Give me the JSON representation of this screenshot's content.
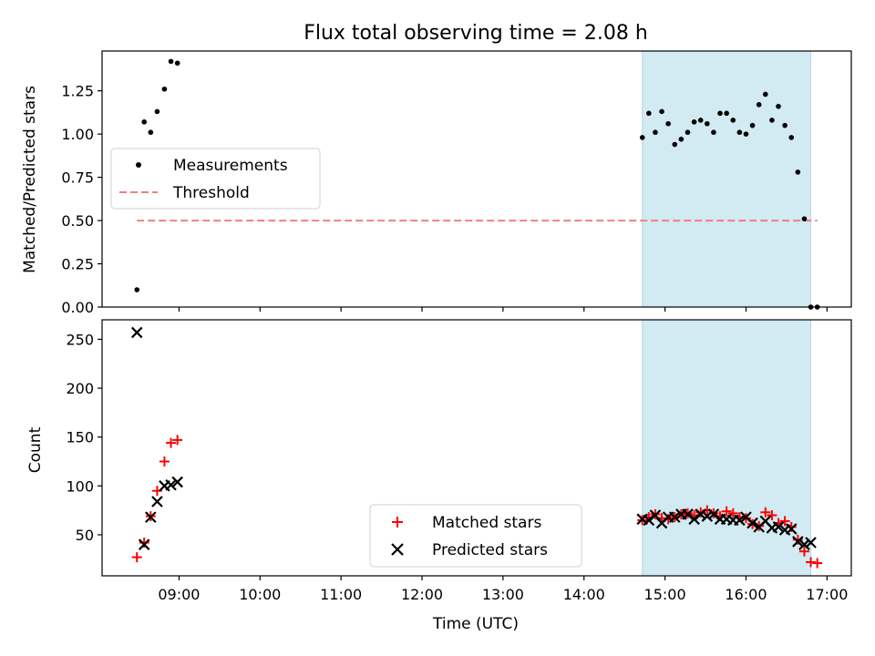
{
  "chart_data": {
    "type": "scatter",
    "title": "Flux total observing time = 2.08 h",
    "xlabel": "Time (UTC)",
    "x_tick_labels": [
      "09:00",
      "10:00",
      "11:00",
      "12:00",
      "13:00",
      "14:00",
      "15:00",
      "16:00",
      "17:00"
    ],
    "x_tick_hours": [
      9,
      10,
      11,
      12,
      13,
      14,
      15,
      16,
      17
    ],
    "x_range_hours": [
      8.05,
      17.3
    ],
    "highlight_span_hours": [
      14.72,
      16.8
    ],
    "colors": {
      "measurements": "#000000",
      "threshold": "#f08080",
      "matched": "#ff0000",
      "predicted": "#000000",
      "span": "#add8e6"
    },
    "panels": [
      {
        "id": "ratio",
        "ylabel": "Matched/Predicted stars",
        "ylim": [
          0.0,
          1.48
        ],
        "y_ticks": [
          0.0,
          0.25,
          0.5,
          0.75,
          1.0,
          1.25
        ],
        "y_tick_labels": [
          "0.00",
          "0.25",
          "0.50",
          "0.75",
          "1.00",
          "1.25"
        ],
        "legend_position": "center-left",
        "series": [
          {
            "name": "Measurements",
            "marker": "dot",
            "x": [
              8.48,
              8.57,
              8.65,
              8.73,
              8.82,
              8.9,
              8.98,
              14.72,
              14.8,
              14.88,
              14.96,
              15.04,
              15.12,
              15.2,
              15.28,
              15.36,
              15.44,
              15.52,
              15.6,
              15.68,
              15.76,
              15.84,
              15.92,
              16.0,
              16.08,
              16.16,
              16.24,
              16.32,
              16.4,
              16.48,
              16.56,
              16.64,
              16.72,
              16.8,
              16.88
            ],
            "y": [
              0.1,
              1.07,
              1.01,
              1.13,
              1.26,
              1.42,
              1.41,
              0.98,
              1.12,
              1.01,
              1.13,
              1.06,
              0.94,
              0.97,
              1.01,
              1.07,
              1.08,
              1.06,
              1.01,
              1.12,
              1.12,
              1.08,
              1.01,
              1.0,
              1.05,
              1.17,
              1.23,
              1.08,
              1.16,
              1.05,
              0.98,
              0.78,
              0.51,
              0.0,
              0.0
            ]
          },
          {
            "name": "Threshold",
            "marker": "dashed-line",
            "x": [
              8.48,
              16.88
            ],
            "y": [
              0.5,
              0.5
            ]
          }
        ]
      },
      {
        "id": "count",
        "ylabel": "Count",
        "ylim": [
          8,
          270
        ],
        "y_ticks": [
          50,
          100,
          150,
          200,
          250
        ],
        "y_tick_labels": [
          "50",
          "100",
          "150",
          "200",
          "250"
        ],
        "legend_position": "lower-center",
        "series": [
          {
            "name": "Matched stars",
            "marker": "plus",
            "x": [
              8.48,
              8.57,
              8.65,
              8.73,
              8.82,
              8.9,
              8.98,
              14.72,
              14.8,
              14.88,
              14.96,
              15.04,
              15.12,
              15.2,
              15.28,
              15.36,
              15.44,
              15.52,
              15.6,
              15.68,
              15.76,
              15.84,
              15.92,
              16.0,
              16.08,
              16.16,
              16.24,
              16.32,
              16.4,
              16.48,
              16.56,
              16.64,
              16.72,
              16.8,
              16.88
            ],
            "y": [
              27,
              42,
              69,
              95,
              125,
              144,
              147,
              65,
              68,
              71,
              67,
              66,
              68,
              71,
              72,
              70,
              73,
              75,
              72,
              69,
              74,
              72,
              68,
              67,
              61,
              59,
              73,
              70,
              62,
              64,
              58,
              45,
              33,
              22,
              21
            ]
          },
          {
            "name": "Predicted stars",
            "marker": "x",
            "x": [
              8.48,
              8.57,
              8.65,
              8.73,
              8.82,
              8.9,
              8.98,
              14.72,
              14.8,
              14.88,
              14.96,
              15.04,
              15.12,
              15.2,
              15.28,
              15.36,
              15.44,
              15.52,
              15.6,
              15.68,
              15.76,
              15.84,
              15.92,
              16.0,
              16.08,
              16.16,
              16.24,
              16.32,
              16.4,
              16.48,
              16.56,
              16.64,
              16.72,
              16.8
            ],
            "y": [
              257,
              40,
              68,
              84,
              100,
              101,
              104,
              66,
              65,
              70,
              62,
              68,
              68,
              71,
              71,
              66,
              71,
              69,
              71,
              66,
              66,
              65,
              65,
              68,
              62,
              58,
              64,
              57,
              58,
              55,
              56,
              43,
              40,
              42
            ]
          }
        ]
      }
    ]
  }
}
